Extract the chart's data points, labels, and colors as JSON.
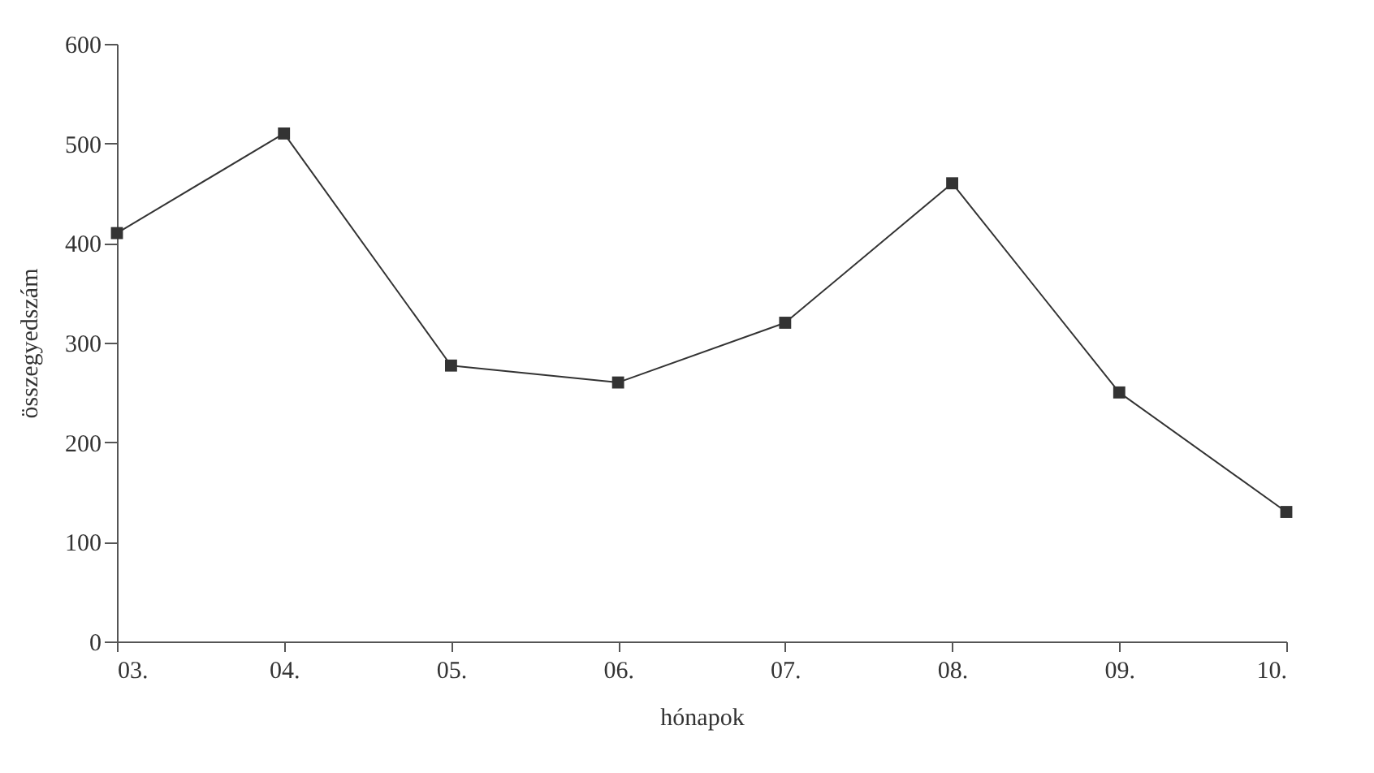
{
  "chart_data": {
    "type": "line",
    "xlabel": "hónapok",
    "ylabel": "összegyedszám",
    "categories": [
      "03.",
      "04.",
      "05.",
      "06.",
      "07.",
      "08.",
      "09.",
      "10."
    ],
    "series": [
      {
        "color": "#333333",
        "values": [
          410,
          510,
          277,
          260,
          320,
          460,
          250,
          130
        ]
      }
    ],
    "ylim": [
      0,
      600
    ],
    "yticks": [
      0,
      100,
      200,
      300,
      400,
      500,
      600
    ],
    "grid": false,
    "marker": "square",
    "line_style": "solid"
  }
}
